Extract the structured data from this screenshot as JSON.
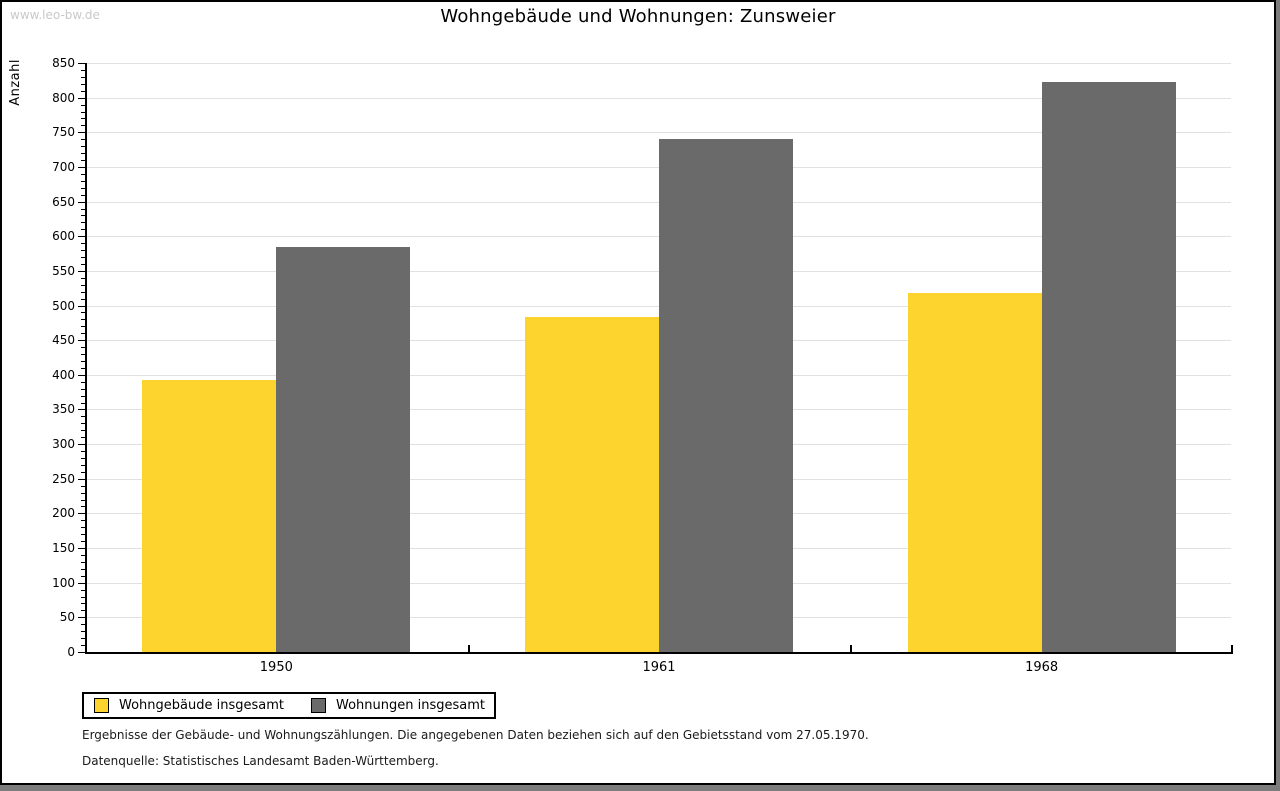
{
  "page": {
    "watermark": "www.leo-bw.de",
    "footnote1": "Ergebnisse der Gebäude- und Wohnungszählungen. Die angegebenen Daten beziehen sich auf den Gebietsstand vom 27.05.1970.",
    "footnote2": "Datenquelle: Statistisches Landesamt Baden-Württemberg."
  },
  "chart_data": {
    "type": "bar",
    "title": "Wohngebäude und Wohnungen: Zunsweier",
    "xlabel": "",
    "ylabel": "Anzahl",
    "categories": [
      "1950",
      "1961",
      "1968"
    ],
    "series": [
      {
        "name": "Wohngebäude insgesamt",
        "color": "#fcd42d",
        "values": [
          393,
          483,
          518
        ]
      },
      {
        "name": "Wohnungen insgesamt",
        "color": "#6a6a6a",
        "values": [
          585,
          740,
          823
        ]
      }
    ],
    "ylim": [
      0,
      850
    ],
    "ytick_step": 50,
    "minor_tick_step": 10,
    "grid": true,
    "gridline_color": "#e1e1e1",
    "legend_position": "bottom-left"
  }
}
